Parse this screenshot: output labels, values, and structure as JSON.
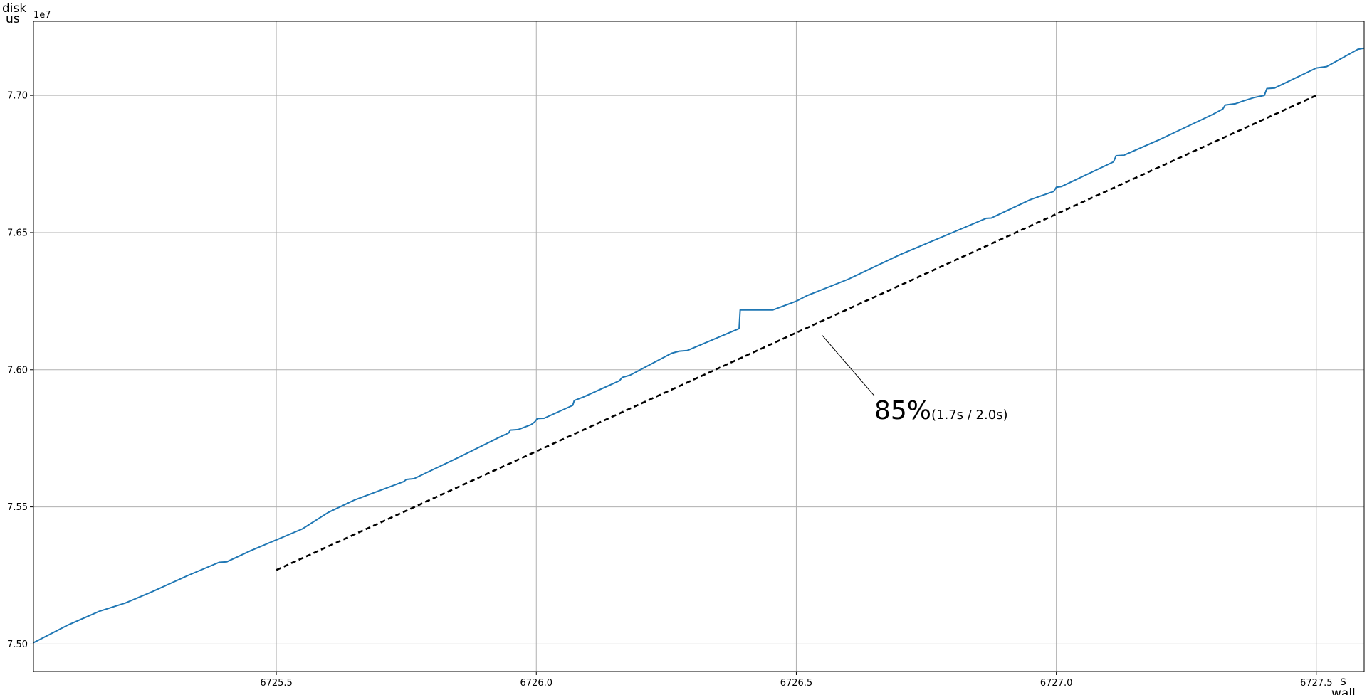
{
  "chart_data": {
    "type": "line",
    "title": "",
    "xlabel": "wall",
    "xunit": "s",
    "ylabel": "disk",
    "yunit": "us",
    "yoffset_text": "1e7",
    "xlim": [
      6725.033,
      6727.592
    ],
    "ylim": [
      74900000,
      77270000
    ],
    "grid": true,
    "x_ticks": [
      6725.5,
      6726.0,
      6726.5,
      6727.0,
      6727.5
    ],
    "x_tick_labels": [
      "6725.5",
      "6726.0",
      "6726.5",
      "6727.0",
      "6727.5"
    ],
    "y_ticks": [
      75000000,
      75500000,
      76000000,
      76500000,
      77000000
    ],
    "y_tick_labels": [
      "7.50",
      "7.55",
      "7.60",
      "7.65",
      "7.70"
    ],
    "series": [
      {
        "style": "solid",
        "color": "#1f77b4",
        "points": [
          [
            6725.033,
            75005000
          ],
          [
            6725.1,
            75070000
          ],
          [
            6725.16,
            75120000
          ],
          [
            6725.21,
            75150000
          ],
          [
            6725.26,
            75190000
          ],
          [
            6725.33,
            75250000
          ],
          [
            6725.39,
            75298000
          ],
          [
            6725.405,
            75300000
          ],
          [
            6725.45,
            75340000
          ],
          [
            6725.5,
            75380000
          ],
          [
            6725.55,
            75420000
          ],
          [
            6725.6,
            75480000
          ],
          [
            6725.65,
            75525000
          ],
          [
            6725.745,
            75592000
          ],
          [
            6725.75,
            75600000
          ],
          [
            6725.765,
            75603000
          ],
          [
            6725.85,
            75680000
          ],
          [
            6725.93,
            75755000
          ],
          [
            6725.947,
            75770000
          ],
          [
            6725.95,
            75780000
          ],
          [
            6725.965,
            75782000
          ],
          [
            6725.99,
            75800000
          ],
          [
            6725.997,
            75810000
          ],
          [
            6726.002,
            75822000
          ],
          [
            6726.015,
            75823000
          ],
          [
            6726.07,
            75870000
          ],
          [
            6726.073,
            75888000
          ],
          [
            6726.09,
            75900000
          ],
          [
            6726.16,
            75960000
          ],
          [
            6726.165,
            75972000
          ],
          [
            6726.18,
            75980000
          ],
          [
            6726.26,
            76060000
          ],
          [
            6726.275,
            76068000
          ],
          [
            6726.29,
            76070000
          ],
          [
            6726.39,
            76150000
          ],
          [
            6726.392,
            76218000
          ],
          [
            6726.455,
            76218000
          ],
          [
            6726.5,
            76250000
          ],
          [
            6726.52,
            76270000
          ],
          [
            6726.6,
            76330000
          ],
          [
            6726.7,
            76420000
          ],
          [
            6726.8,
            76500000
          ],
          [
            6726.865,
            76552000
          ],
          [
            6726.875,
            76553000
          ],
          [
            6726.95,
            76620000
          ],
          [
            6726.995,
            76650000
          ],
          [
            6727.0,
            76665000
          ],
          [
            6727.01,
            76668000
          ],
          [
            6727.11,
            76758000
          ],
          [
            6727.115,
            76780000
          ],
          [
            6727.13,
            76782000
          ],
          [
            6727.2,
            76840000
          ],
          [
            6727.3,
            76930000
          ],
          [
            6727.32,
            76950000
          ],
          [
            6727.325,
            76965000
          ],
          [
            6727.345,
            76970000
          ],
          [
            6727.36,
            76980000
          ],
          [
            6727.38,
            76992000
          ],
          [
            6727.4,
            77000000
          ],
          [
            6727.405,
            77025000
          ],
          [
            6727.42,
            77027000
          ],
          [
            6727.5,
            77100000
          ],
          [
            6727.52,
            77105000
          ],
          [
            6727.58,
            77168000
          ],
          [
            6727.585,
            77170000
          ],
          [
            6727.592,
            77172000
          ]
        ]
      },
      {
        "style": "dashed",
        "color": "#000000",
        "points": [
          [
            6725.5,
            75270000
          ],
          [
            6727.5,
            77000000
          ]
        ]
      }
    ],
    "annotations": [
      {
        "percent_text": "85%",
        "detail_text": "(1.7s / 2.0s)",
        "pointer_from": [
          6726.65,
          75905000
        ],
        "pointer_to": [
          6726.55,
          76125000
        ],
        "text_at": [
          6726.65,
          75820000
        ]
      }
    ]
  }
}
